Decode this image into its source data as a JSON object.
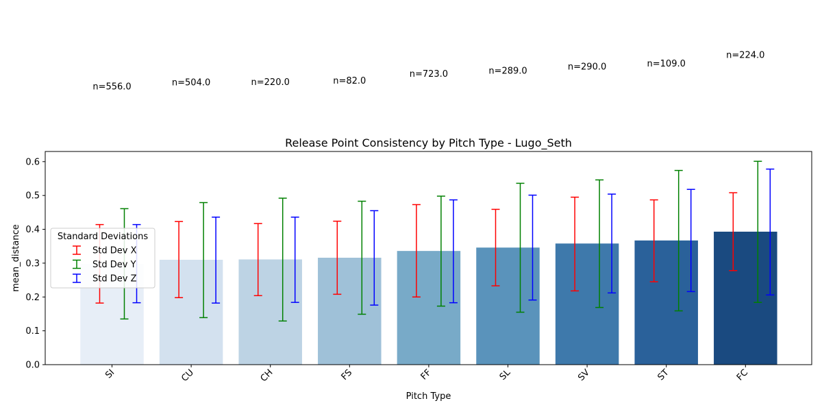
{
  "chart_data": {
    "type": "bar",
    "title": "Release Point Consistency by Pitch Type - Lugo_Seth",
    "xlabel": "Pitch Type",
    "ylabel": "mean_distance",
    "ylim": [
      0,
      0.63
    ],
    "yticks": [
      "0.0",
      "0.1",
      "0.2",
      "0.3",
      "0.4",
      "0.5",
      "0.6"
    ],
    "grid": false,
    "categories": [
      "SI",
      "CU",
      "CH",
      "FS",
      "FF",
      "SL",
      "SV",
      "ST",
      "FC"
    ],
    "values": [
      0.298,
      0.31,
      0.311,
      0.316,
      0.336,
      0.346,
      0.358,
      0.367,
      0.393
    ],
    "bar_colors": [
      "#e7eef7",
      "#d3e1ef",
      "#bdd3e4",
      "#9fc1d8",
      "#78aac8",
      "#5a93bb",
      "#3e79ab",
      "#2a619a",
      "#1a4a80"
    ],
    "counts": [
      "n=556.0",
      "n=504.0",
      "n=220.0",
      "n=82.0",
      "n=723.0",
      "n=289.0",
      "n=290.0",
      "n=109.0",
      "n=224.0"
    ],
    "count_label_levels": [
      0.298,
      0.31,
      0.311,
      0.316,
      0.336,
      0.346,
      0.358,
      0.367,
      0.393
    ],
    "legend": {
      "title": "Standard Deviations",
      "placement": "center-left"
    },
    "series": [
      {
        "name": "Std Dev X",
        "color": "#ff0000",
        "low": [
          0.182,
          0.198,
          0.204,
          0.208,
          0.2,
          0.233,
          0.218,
          0.245,
          0.278
        ],
        "high": [
          0.414,
          0.423,
          0.417,
          0.424,
          0.473,
          0.459,
          0.495,
          0.487,
          0.508
        ]
      },
      {
        "name": "Std Dev Y",
        "color": "#008000",
        "low": [
          0.135,
          0.139,
          0.129,
          0.149,
          0.173,
          0.155,
          0.169,
          0.159,
          0.184
        ],
        "high": [
          0.461,
          0.479,
          0.492,
          0.483,
          0.498,
          0.536,
          0.546,
          0.574,
          0.601
        ]
      },
      {
        "name": "Std Dev Z",
        "color": "#0000ff",
        "low": [
          0.183,
          0.182,
          0.184,
          0.176,
          0.183,
          0.191,
          0.212,
          0.216,
          0.206
        ],
        "high": [
          0.414,
          0.436,
          0.436,
          0.455,
          0.487,
          0.501,
          0.504,
          0.518,
          0.578
        ]
      }
    ]
  }
}
